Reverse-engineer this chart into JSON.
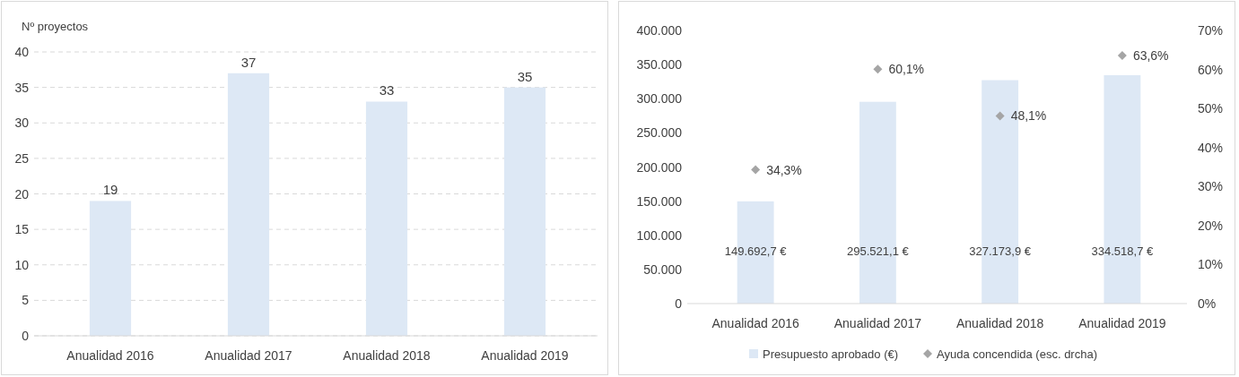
{
  "chart_data": [
    {
      "type": "bar",
      "ylabel": "Nº proyectos",
      "categories": [
        "Anualidad 2016",
        "Anualidad 2017",
        "Anualidad 2018",
        "Anualidad 2019"
      ],
      "values": [
        19,
        37,
        33,
        35
      ],
      "color": "#dde8f5",
      "ylim": [
        0,
        40
      ],
      "yticks": [
        0,
        5,
        10,
        15,
        20,
        25,
        30,
        35,
        40
      ],
      "grid": "y",
      "data_labels": true,
      "legend": false
    },
    {
      "type": "bar",
      "categories": [
        "Anualidad 2016",
        "Anualidad 2017",
        "Anualidad 2018",
        "Anualidad 2019"
      ],
      "series": [
        {
          "name": "Presupuesto aprobado (€)",
          "color": "#dde8f5",
          "values": [
            149692.7,
            295521.1,
            327173.9,
            334518.7
          ],
          "value_labels": [
            "149.692,7 €",
            "295.521,1 €",
            "327.173,9 €",
            "334.518,7 €"
          ]
        },
        {
          "name": "Ayuda concendida (esc. drcha)",
          "type": "scatter",
          "axis": "y2",
          "marker": "diamond",
          "color": "#a5a5a5",
          "values": [
            34.3,
            60.1,
            48.1,
            63.6
          ],
          "value_labels": [
            "34,3%",
            "60,1%",
            "48,1%",
            "63,6%"
          ]
        }
      ],
      "ylim": [
        0,
        400000
      ],
      "yticks": [
        {
          "value": 0,
          "label": "0"
        },
        {
          "value": 50000,
          "label": "50.000"
        },
        {
          "value": 100000,
          "label": "100.000"
        },
        {
          "value": 150000,
          "label": "150.000"
        },
        {
          "value": 200000,
          "label": "200.000"
        },
        {
          "value": 250000,
          "label": "250.000"
        },
        {
          "value": 300000,
          "label": "300.000"
        },
        {
          "value": 350000,
          "label": "350.000"
        },
        {
          "value": 400000,
          "label": "400.000"
        }
      ],
      "y2lim": [
        0,
        70
      ],
      "y2ticks": [
        {
          "value": 0,
          "label": "0%"
        },
        {
          "value": 10,
          "label": "10%"
        },
        {
          "value": 20,
          "label": "20%"
        },
        {
          "value": 30,
          "label": "30%"
        },
        {
          "value": 40,
          "label": "40%"
        },
        {
          "value": 50,
          "label": "50%"
        },
        {
          "value": 60,
          "label": "60%"
        },
        {
          "value": 70,
          "label": "70%"
        }
      ],
      "grid": false,
      "legend": "bottom"
    }
  ]
}
